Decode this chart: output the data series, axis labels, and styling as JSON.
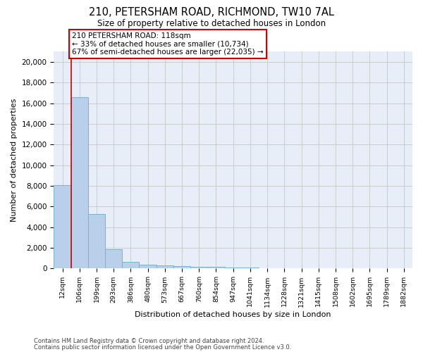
{
  "title_line1": "210, PETERSHAM ROAD, RICHMOND, TW10 7AL",
  "title_line2": "Size of property relative to detached houses in London",
  "xlabel": "Distribution of detached houses by size in London",
  "ylabel": "Number of detached properties",
  "categories": [
    "12sqm",
    "106sqm",
    "199sqm",
    "293sqm",
    "386sqm",
    "480sqm",
    "573sqm",
    "667sqm",
    "760sqm",
    "854sqm",
    "947sqm",
    "1041sqm",
    "1134sqm",
    "1228sqm",
    "1321sqm",
    "1415sqm",
    "1508sqm",
    "1602sqm",
    "1695sqm",
    "1789sqm",
    "1882sqm"
  ],
  "values": [
    8100,
    16600,
    5300,
    1850,
    620,
    350,
    270,
    210,
    185,
    160,
    110,
    70,
    50,
    35,
    25,
    18,
    14,
    10,
    8,
    6,
    4
  ],
  "bar_color": "#b8d0ea",
  "bar_edge_color": "#7aafd4",
  "vline_color": "#cc0000",
  "annotation_line1": "210 PETERSHAM ROAD: 118sqm",
  "annotation_line2": "← 33% of detached houses are smaller (10,734)",
  "annotation_line3": "67% of semi-detached houses are larger (22,035) →",
  "annotation_box_color": "#ffffff",
  "annotation_box_edgecolor": "#cc0000",
  "ylim": [
    0,
    21000
  ],
  "yticks": [
    0,
    2000,
    4000,
    6000,
    8000,
    10000,
    12000,
    14000,
    16000,
    18000,
    20000
  ],
  "grid_color": "#cccccc",
  "bg_color": "#e8eef8",
  "footer_line1": "Contains HM Land Registry data © Crown copyright and database right 2024.",
  "footer_line2": "Contains public sector information licensed under the Open Government Licence v3.0."
}
